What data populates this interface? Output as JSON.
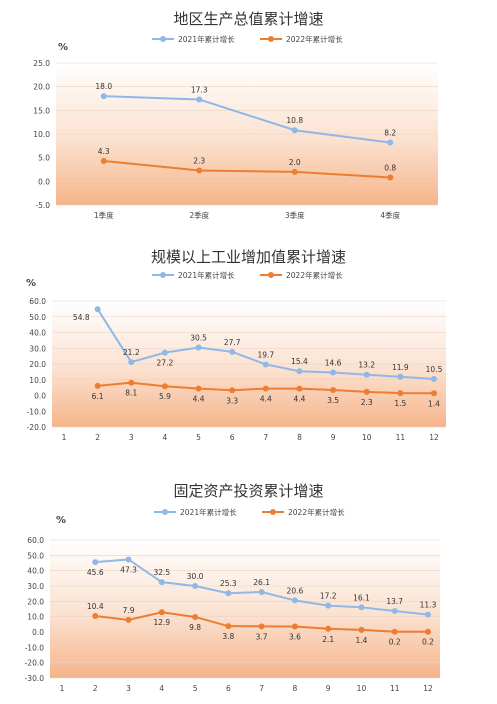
{
  "chart_data": [
    {
      "type": "line",
      "title": "地区生产总值累计增速",
      "unit": "%",
      "categories": [
        "1季度",
        "2季度",
        "3季度",
        "4季度"
      ],
      "ylim": [
        -5.0,
        25.0
      ],
      "yticks": [
        "25.0",
        "20.0",
        "15.0",
        "10.0",
        "5.0",
        "0.0",
        "-5.0"
      ],
      "grid": true,
      "legend_position": "top",
      "series": [
        {
          "name": "2021年累计增长",
          "color": "#8fb8e8",
          "values": [
            18.0,
            17.3,
            10.8,
            8.2
          ],
          "labels": [
            "18.0",
            "17.3",
            "10.8",
            "8.2"
          ]
        },
        {
          "name": "2022年累计增长",
          "color": "#ed7d31",
          "values": [
            4.3,
            2.3,
            2.0,
            0.8
          ],
          "labels": [
            "4.3",
            "2.3",
            "2.0",
            "0.8"
          ]
        }
      ]
    },
    {
      "type": "line",
      "title": "规模以上工业增加值累计增速",
      "unit": "%",
      "categories": [
        "1",
        "2",
        "3",
        "4",
        "5",
        "6",
        "7",
        "8",
        "9",
        "10",
        "11",
        "12"
      ],
      "ylim": [
        -20.0,
        60.0
      ],
      "yticks": [
        "60.0",
        "50.0",
        "40.0",
        "30.0",
        "20.0",
        "10.0",
        "0.0",
        "-10.0",
        "-20.0"
      ],
      "grid": true,
      "legend_position": "top",
      "series": [
        {
          "name": "2021年累计增长",
          "color": "#8fb8e8",
          "values": [
            null,
            54.8,
            21.2,
            27.2,
            30.5,
            27.7,
            19.7,
            15.4,
            14.6,
            13.2,
            11.9,
            10.5
          ],
          "labels": [
            null,
            "54.8",
            "21.2",
            "27.2",
            "30.5",
            "27.7",
            "19.7",
            "15.4",
            "14.6",
            "13.2",
            "11.9",
            "10.5"
          ]
        },
        {
          "name": "2022年累计增长",
          "color": "#ed7d31",
          "values": [
            null,
            6.1,
            8.1,
            5.9,
            4.4,
            3.3,
            4.4,
            4.4,
            3.5,
            2.3,
            1.5,
            1.4
          ],
          "labels": [
            null,
            "6.1",
            "8.1",
            "5.9",
            "4.4",
            "3.3",
            "4.4",
            "4.4",
            "3.5",
            "2.3",
            "1.5",
            "1.4"
          ]
        }
      ]
    },
    {
      "type": "line",
      "title": "固定资产投资累计增速",
      "unit": "%",
      "categories": [
        "1",
        "2",
        "3",
        "4",
        "5",
        "6",
        "7",
        "8",
        "9",
        "10",
        "11",
        "12"
      ],
      "ylim": [
        -30.0,
        60.0
      ],
      "yticks": [
        "60.0",
        "50.0",
        "40.0",
        "30.0",
        "20.0",
        "10.0",
        "0.0",
        "-10.0",
        "-20.0",
        "-30.0"
      ],
      "grid": true,
      "legend_position": "top",
      "series": [
        {
          "name": "2021年累计增长",
          "color": "#8fb8e8",
          "values": [
            null,
            45.6,
            47.3,
            32.5,
            30.0,
            25.3,
            26.1,
            20.6,
            17.2,
            16.1,
            13.7,
            11.3
          ],
          "labels": [
            null,
            "45.6",
            "47.3",
            "32.5",
            "30.0",
            "25.3",
            "26.1",
            "20.6",
            "17.2",
            "16.1",
            "13.7",
            "11.3"
          ]
        },
        {
          "name": "2022年累计增长",
          "color": "#ed7d31",
          "values": [
            null,
            10.4,
            7.9,
            12.9,
            9.8,
            3.8,
            3.7,
            3.6,
            2.1,
            1.4,
            0.2,
            0.2
          ],
          "labels": [
            null,
            "10.4",
            "7.9",
            "12.9",
            "9.8",
            "3.8",
            "3.7",
            "3.6",
            "2.1",
            "1.4",
            "0.2",
            "0.2"
          ]
        }
      ]
    }
  ]
}
